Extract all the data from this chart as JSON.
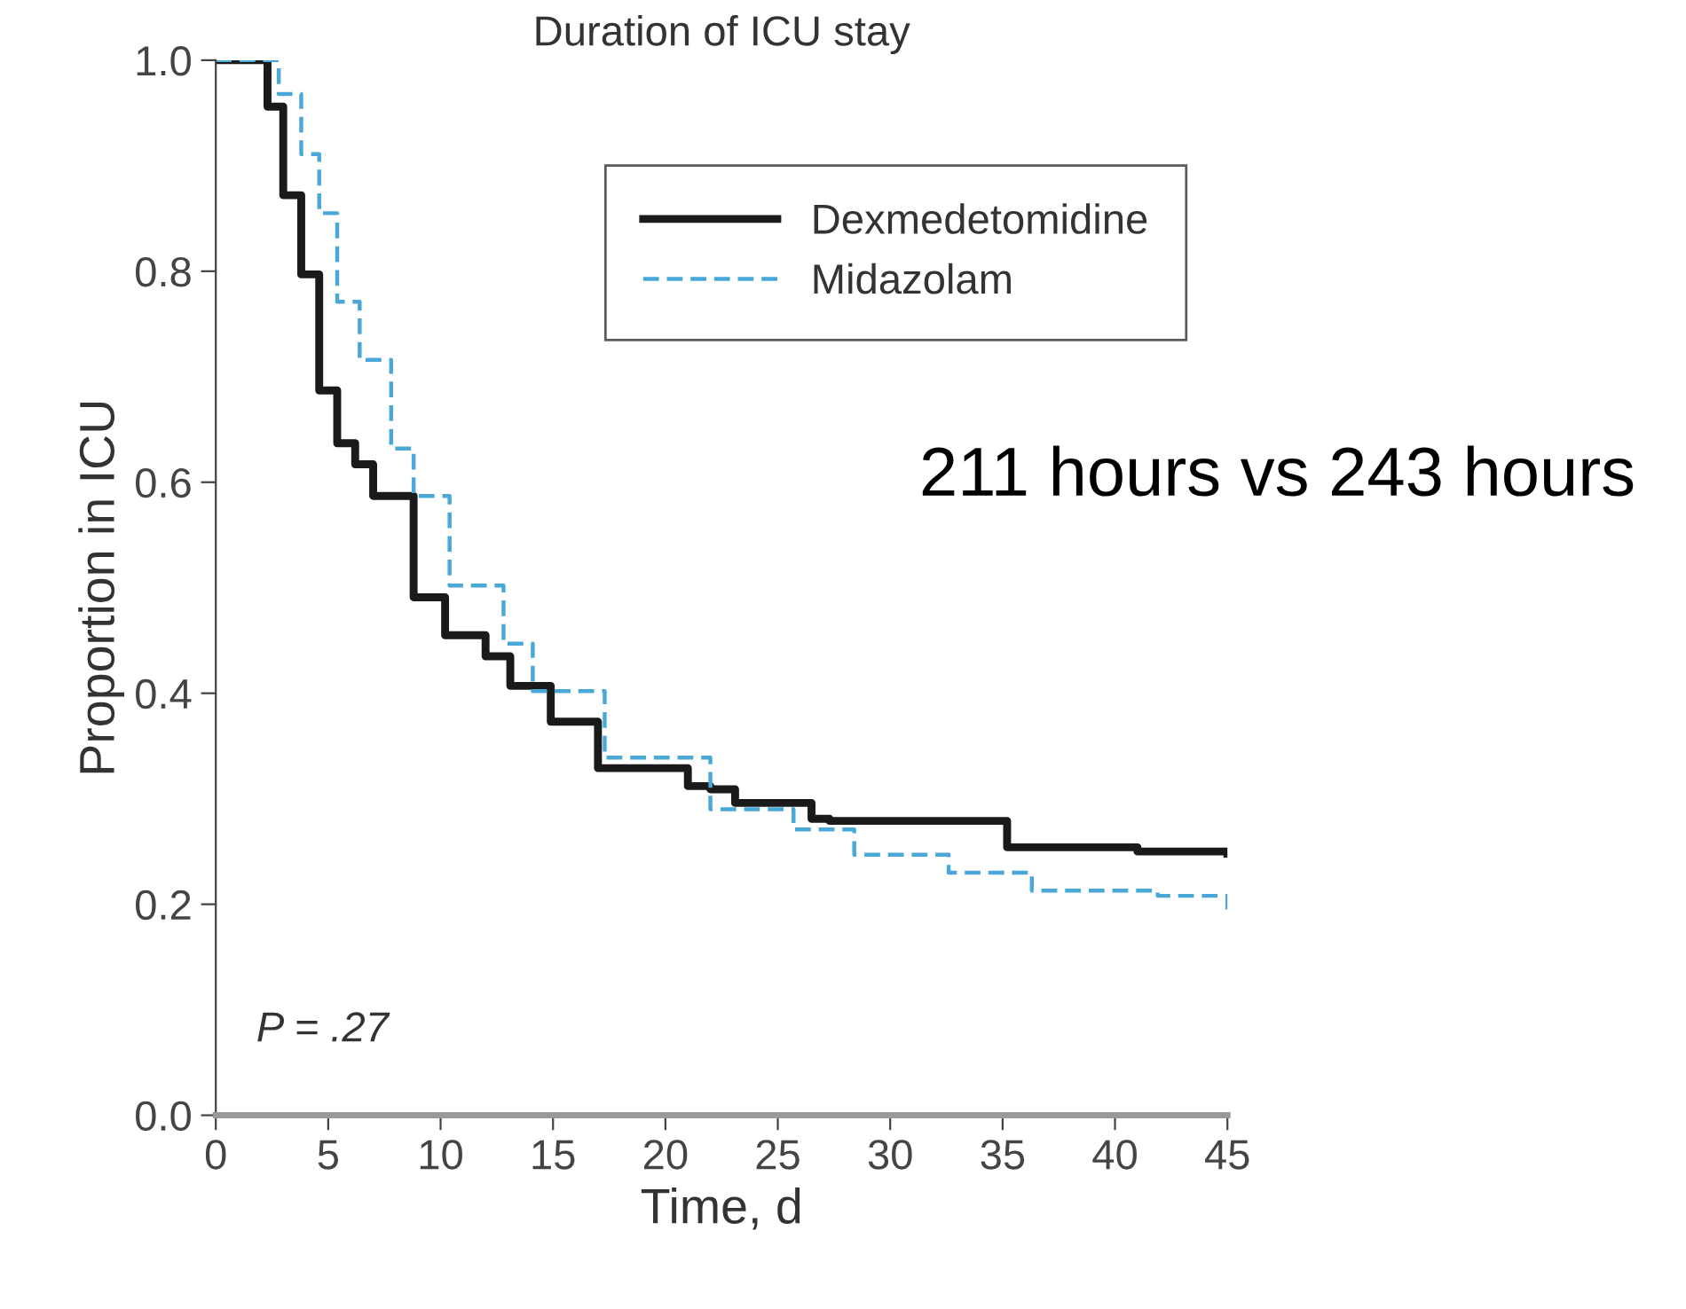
{
  "chart_data": {
    "type": "step",
    "title": "Duration of ICU stay",
    "xlabel": "Time, d",
    "ylabel": "Proportion in ICU",
    "xlim": [
      0,
      45
    ],
    "xticks": [
      0,
      5,
      10,
      15,
      20,
      25,
      30,
      35,
      40,
      45
    ],
    "ylim": [
      0,
      1.0
    ],
    "yticks": [
      {
        "value": 0,
        "label": "0.0"
      },
      {
        "value": 0.2,
        "label": "0.2"
      },
      {
        "value": 0.4,
        "label": "0.4"
      },
      {
        "value": 0.6,
        "label": "0.6"
      },
      {
        "value": 0.8,
        "label": "0.8"
      },
      {
        "value": 1.0,
        "label": "1.0"
      }
    ],
    "grid": false,
    "legend": "top right",
    "annotations": [
      "211 hours vs 243 hours",
      "P = .27"
    ],
    "series": [
      {
        "name": "Dexmedetomidine",
        "color": "#1a1a1a",
        "line_style": "solid",
        "x": [
          0,
          1.9,
          2.3,
          3.0,
          3.8,
          4.6,
          5.4,
          6.2,
          7.0,
          8.8,
          10.2,
          12.0,
          13.1,
          14.9,
          17.0,
          21.0,
          22.0,
          23.1,
          26.5,
          27.3,
          32.6,
          35.2,
          41.0,
          45
        ],
        "values": [
          1.0,
          1.0,
          0.956,
          0.872,
          0.797,
          0.687,
          0.637,
          0.617,
          0.587,
          0.491,
          0.455,
          0.435,
          0.407,
          0.373,
          0.329,
          0.312,
          0.309,
          0.296,
          0.281,
          0.279,
          0.279,
          0.254,
          0.25,
          0.248
        ]
      },
      {
        "name": "Midazolam",
        "color": "#4aa8d8",
        "line_style": "dashed",
        "x": [
          0,
          1.7,
          2.8,
          3.8,
          4.6,
          5.4,
          6.4,
          7.8,
          8.8,
          10.4,
          12.8,
          14.1,
          17.3,
          22.0,
          25.7,
          28.4,
          32.6,
          36.3,
          41.9,
          45
        ],
        "values": [
          1.0,
          1.0,
          0.968,
          0.911,
          0.855,
          0.771,
          0.716,
          0.632,
          0.587,
          0.502,
          0.447,
          0.402,
          0.339,
          0.29,
          0.271,
          0.247,
          0.23,
          0.213,
          0.208,
          0.195
        ]
      }
    ]
  }
}
